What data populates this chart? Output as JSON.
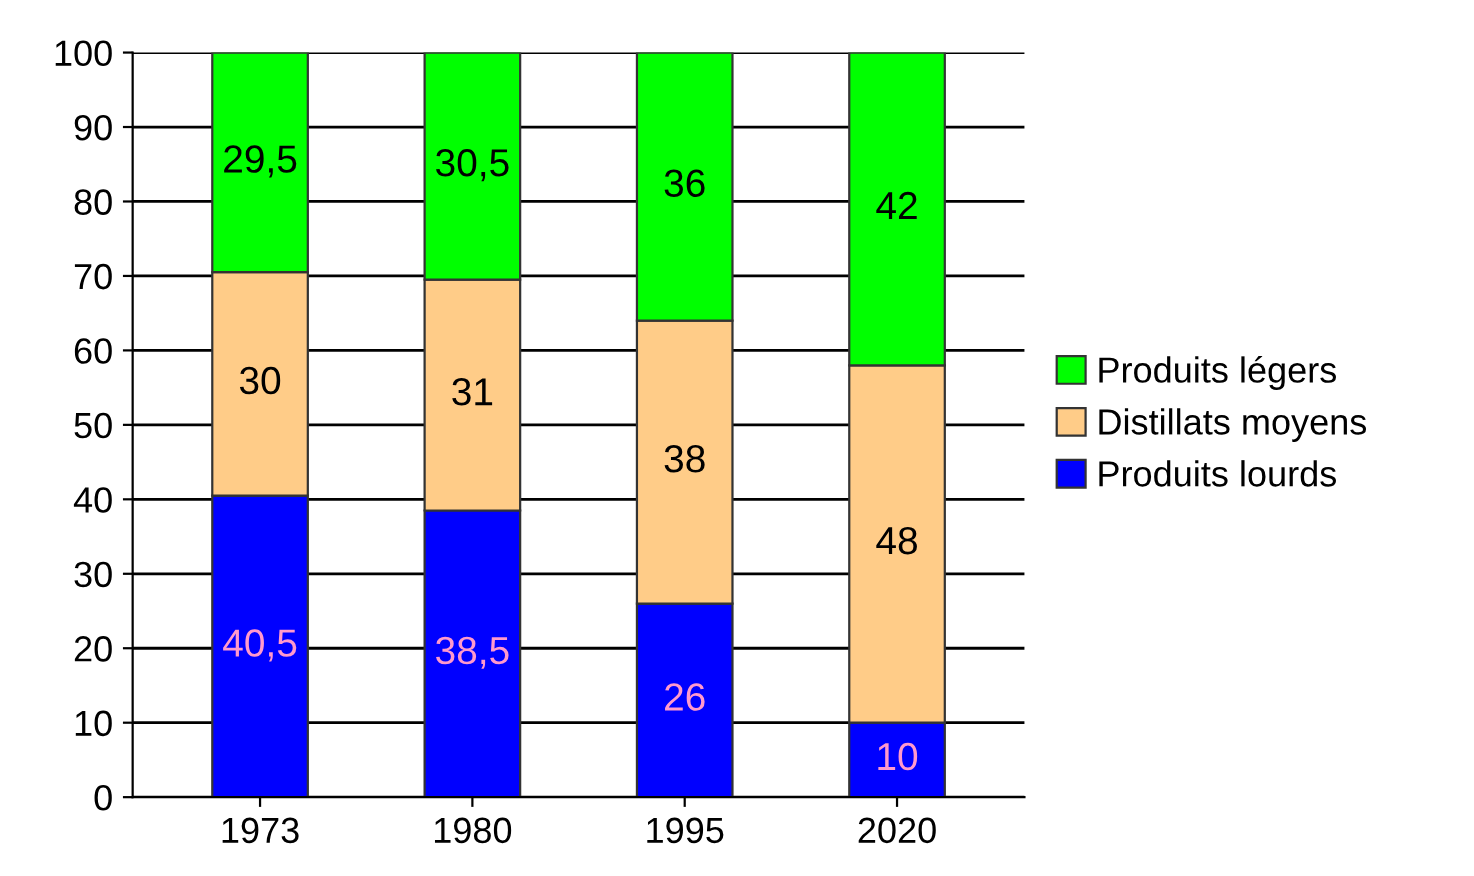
{
  "chart_data": {
    "type": "bar",
    "stacked": true,
    "categories": [
      "1973",
      "1980",
      "1995",
      "2020"
    ],
    "series": [
      {
        "name": "Produits lourds",
        "color": "#0000ff",
        "values": [
          40.5,
          38.5,
          26,
          10
        ],
        "value_labels": [
          "40,5",
          "38,5",
          "26",
          "10"
        ]
      },
      {
        "name": "Distillats moyens",
        "color": "#ffcc88",
        "values": [
          30,
          31,
          38,
          48
        ],
        "value_labels": [
          "30",
          "31",
          "38",
          "48"
        ]
      },
      {
        "name": "Produits légers",
        "color": "#00ff00",
        "values": [
          29.5,
          30.5,
          36,
          42
        ],
        "value_labels": [
          "29,5",
          "30,5",
          "36",
          "42"
        ]
      }
    ],
    "ylim": [
      0,
      100
    ],
    "yticks": [
      0,
      10,
      20,
      30,
      40,
      50,
      60,
      70,
      80,
      90,
      100
    ],
    "grid": "y",
    "legend": "right"
  }
}
